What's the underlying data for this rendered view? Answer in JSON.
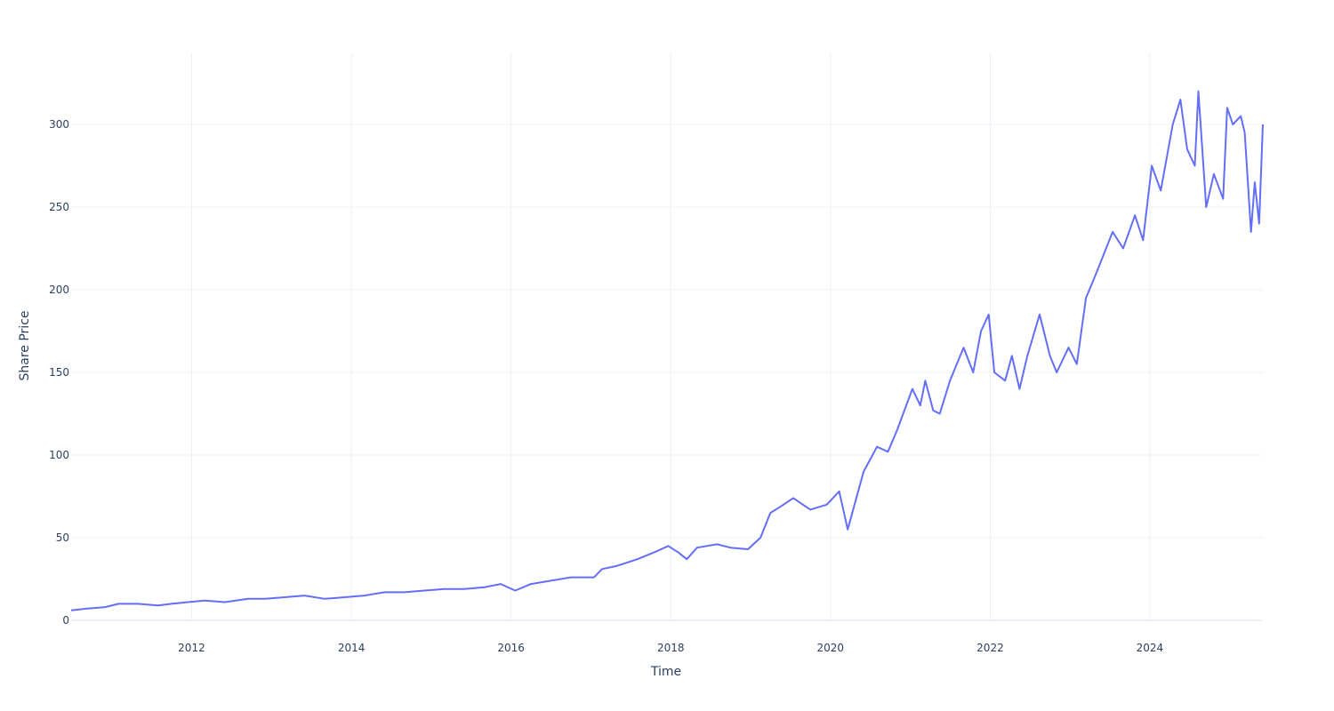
{
  "chart_data": {
    "type": "line",
    "title": "",
    "xlabel": "Time",
    "ylabel": "Share Price",
    "xlim": [
      "2010-06-29",
      "2025-06-01"
    ],
    "ylim": [
      0,
      343
    ],
    "x_ticks": [
      "2012",
      "2014",
      "2016",
      "2018",
      "2020",
      "2022",
      "2024"
    ],
    "y_ticks": [
      "0",
      "50",
      "100",
      "150",
      "200",
      "250",
      "300"
    ],
    "grid": true,
    "line_color": "#636efa",
    "series": [
      {
        "x": [
          "2010-06-29",
          "2010-09-01",
          "2010-12-01",
          "2011-02-01",
          "2011-05-01",
          "2011-08-01",
          "2011-10-01",
          "2011-12-15",
          "2012-03-01",
          "2012-06-01",
          "2012-09-15",
          "2012-12-01",
          "2013-03-01",
          "2013-06-01",
          "2013-09-01",
          "2013-12-01",
          "2014-03-01",
          "2014-06-01",
          "2014-09-01",
          "2014-12-01",
          "2015-03-01",
          "2015-06-01",
          "2015-09-01",
          "2015-11-15",
          "2016-01-20",
          "2016-04-01",
          "2016-07-01",
          "2016-10-01",
          "2017-01-15",
          "2017-02-20",
          "2017-05-01",
          "2017-08-01",
          "2017-11-01",
          "2017-12-20",
          "2018-02-05",
          "2018-03-15",
          "2018-05-01",
          "2018-08-01",
          "2018-10-01",
          "2018-12-20",
          "2019-02-15",
          "2019-04-01",
          "2019-05-20",
          "2019-07-15",
          "2019-10-01",
          "2019-12-15",
          "2020-02-10",
          "2020-03-20",
          "2020-06-01",
          "2020-08-01",
          "2020-09-20",
          "2020-11-01",
          "2021-01-10",
          "2021-02-15",
          "2021-03-10",
          "2021-04-15",
          "2021-05-15",
          "2021-07-01",
          "2021-09-01",
          "2021-10-15",
          "2021-11-20",
          "2021-12-25",
          "2022-01-20",
          "2022-03-10",
          "2022-04-10",
          "2022-05-15",
          "2022-06-20",
          "2022-08-15",
          "2022-10-01",
          "2022-11-01",
          "2022-12-25",
          "2023-02-01",
          "2023-03-15",
          "2023-05-01",
          "2023-07-15",
          "2023-09-01",
          "2023-10-25",
          "2023-12-01",
          "2024-01-10",
          "2024-02-20",
          "2024-04-15",
          "2024-05-20",
          "2024-06-20",
          "2024-07-25",
          "2024-08-10",
          "2024-09-15",
          "2024-10-20",
          "2024-12-01",
          "2024-12-20",
          "2025-01-15",
          "2025-02-20",
          "2025-03-10",
          "2025-04-08",
          "2025-04-25",
          "2025-05-15",
          "2025-06-01"
        ],
        "y": [
          6,
          7,
          8,
          10,
          10,
          9,
          10,
          11,
          12,
          11,
          13,
          13,
          14,
          15,
          13,
          14,
          15,
          17,
          17,
          18,
          19,
          19,
          20,
          22,
          18,
          22,
          24,
          26,
          26,
          31,
          33,
          37,
          42,
          45,
          41,
          37,
          44,
          46,
          44,
          43,
          50,
          65,
          69,
          74,
          67,
          70,
          78,
          55,
          90,
          105,
          102,
          115,
          140,
          130,
          145,
          127,
          125,
          145,
          165,
          150,
          175,
          185,
          150,
          145,
          160,
          140,
          160,
          185,
          160,
          150,
          165,
          155,
          195,
          210,
          235,
          225,
          245,
          230,
          275,
          260,
          300,
          315,
          285,
          275,
          320,
          250,
          270,
          255,
          310,
          300,
          305,
          295,
          235,
          265,
          240,
          300
        ]
      }
    ]
  }
}
